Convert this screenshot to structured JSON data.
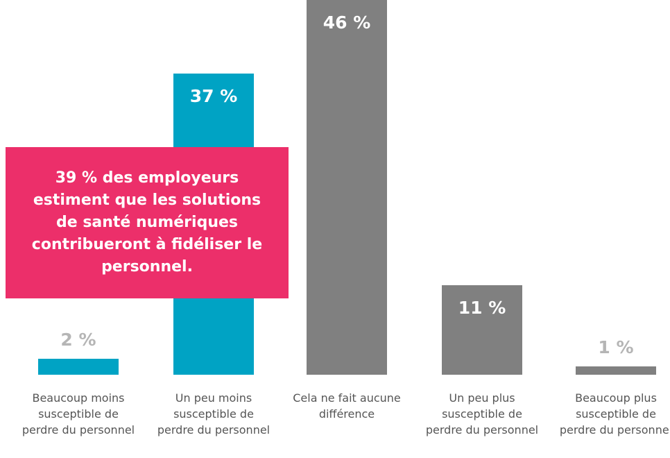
{
  "chart_data": {
    "type": "bar",
    "categories": [
      "Beaucoup moins susceptible de perdre du personnel",
      "Un peu moins susceptible de perdre du personnel",
      "Cela ne fait aucune différence",
      "Un peu plus susceptible de perdre du personnel",
      "Beaucoup plus susceptible de perdre du personnel"
    ],
    "values": [
      2,
      37,
      46,
      11,
      1
    ],
    "value_labels": [
      "2 %",
      "37 %",
      "46 %",
      "11 %",
      "1 %"
    ],
    "colors": [
      "#00a3c4",
      "#00a3c4",
      "#808080",
      "#808080",
      "#808080"
    ],
    "annotation": "39 % des employeurs estiment que les solutions de santé numériques contribueront à fidéliser le personnel."
  }
}
